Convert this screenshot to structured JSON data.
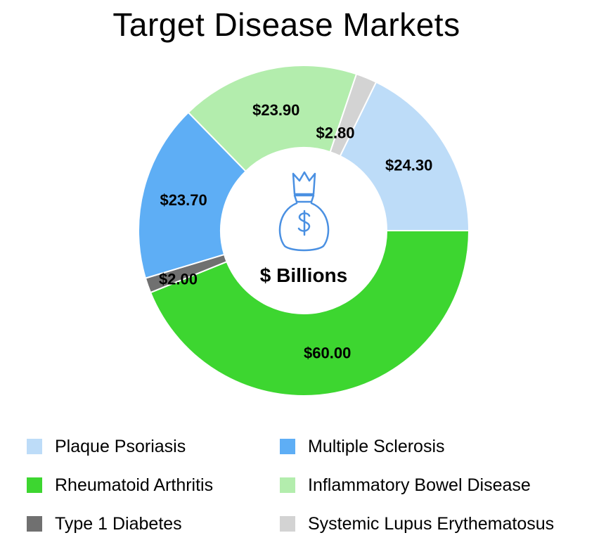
{
  "chart_data": {
    "type": "pie",
    "style": "donut",
    "title": "Target Disease Markets",
    "center_label": "$ Billions",
    "center_icon": "money-bag-icon",
    "legend_position": "bottom",
    "slices": [
      {
        "name": "Plaque Psoriasis",
        "value": 24.3,
        "label": "$24.30",
        "color": "#BDDCF8"
      },
      {
        "name": "Rheumatoid Arthritis",
        "value": 60.0,
        "label": "$60.00",
        "color": "#3DD630"
      },
      {
        "name": "Type 1 Diabetes",
        "value": 2.0,
        "label": "$2.00",
        "color": "#707070"
      },
      {
        "name": "Multiple Sclerosis",
        "value": 23.7,
        "label": "$23.70",
        "color": "#5EAEF5"
      },
      {
        "name": "Inflammatory Bowel Disease",
        "value": 23.9,
        "label": "$23.90",
        "color": "#B3EDAD"
      },
      {
        "name": "Systemic Lupus Erythematosus",
        "value": 2.8,
        "label": "$2.80",
        "color": "#D3D3D3"
      }
    ]
  }
}
